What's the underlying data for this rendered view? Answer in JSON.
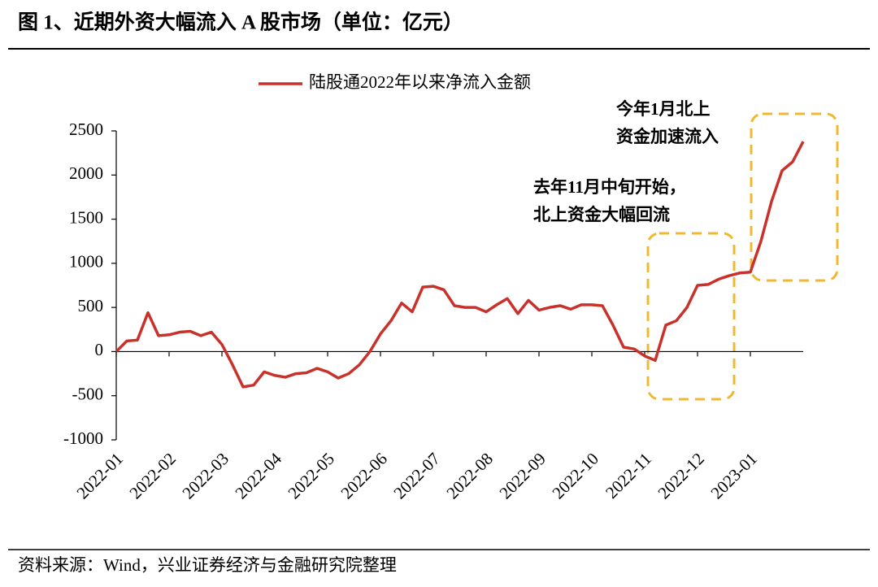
{
  "chart_data": {
    "type": "line",
    "title": "图 1、近期外资大幅流入 A 股市场（单位：亿元）",
    "source": "资料来源：Wind，兴业证券经济与金融研究院整理",
    "categories": [
      "2022-01",
      null,
      null,
      null,
      null,
      "2022-02",
      null,
      null,
      null,
      null,
      "2022-03",
      null,
      null,
      null,
      null,
      "2022-04",
      null,
      null,
      null,
      null,
      "2022-05",
      null,
      null,
      null,
      null,
      "2022-06",
      null,
      null,
      null,
      null,
      "2022-07",
      null,
      null,
      null,
      null,
      "2022-08",
      null,
      null,
      null,
      null,
      "2022-09",
      null,
      null,
      null,
      null,
      "2022-10",
      null,
      null,
      null,
      null,
      "2022-11",
      null,
      null,
      null,
      null,
      "2022-12",
      null,
      null,
      null,
      null,
      "2023-01",
      null,
      null,
      null,
      null,
      null
    ],
    "series": [
      {
        "name": "陆股通2022年以来净流入金额",
        "color": "#c8322b",
        "values": [
          0,
          120,
          130,
          440,
          180,
          190,
          220,
          230,
          180,
          220,
          80,
          -150,
          -400,
          -380,
          -230,
          -270,
          -290,
          -250,
          -240,
          -190,
          -230,
          -300,
          -250,
          -150,
          0,
          200,
          350,
          550,
          450,
          730,
          740,
          700,
          520,
          500,
          500,
          450,
          530,
          600,
          430,
          580,
          470,
          500,
          520,
          480,
          530,
          530,
          520,
          300,
          50,
          30,
          -50,
          -100,
          300,
          350,
          500,
          750,
          760,
          820,
          860,
          890,
          900,
          1250,
          1700,
          2050,
          2150,
          2380
        ]
      }
    ],
    "ylim": [
      -1000,
      2500
    ],
    "yticks": [
      -1000,
      -500,
      0,
      500,
      1000,
      1500,
      2000,
      2500
    ],
    "legend": "top",
    "annotations": [
      {
        "lines": [
          "今年1月北上",
          "资金加速流入"
        ]
      },
      {
        "lines": [
          "去年11月中旬开始，",
          "北上资金大幅回流"
        ]
      }
    ]
  }
}
